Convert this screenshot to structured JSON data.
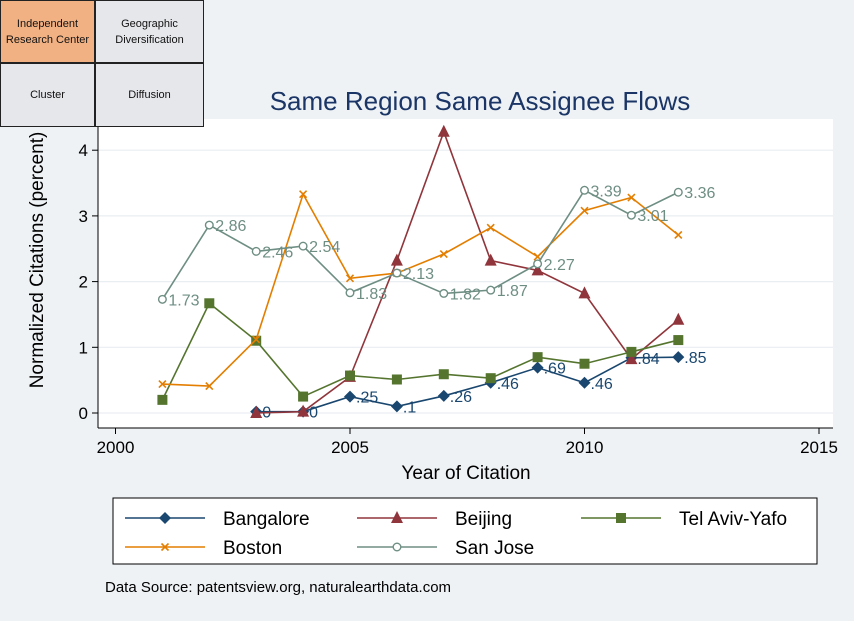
{
  "nav": {
    "items": [
      {
        "label": "Independent\nResearch Center",
        "active": true
      },
      {
        "label": "Geographic\nDiversification",
        "active": false
      },
      {
        "label": "Cluster",
        "active": false
      },
      {
        "label": "Diffusion",
        "active": false
      }
    ]
  },
  "source_note": "Data Source: patentsview.org, naturalearthdata.com",
  "chart_data": {
    "type": "line",
    "title": "Same Region Same Assignee Flows",
    "xlabel": "Year of Citation",
    "ylabel": "Normalized Citations (percent)",
    "xlim": [
      2000,
      2015
    ],
    "ylim": [
      0,
      4.2
    ],
    "xticks": [
      2000,
      2005,
      2010,
      2015
    ],
    "yticks": [
      0,
      1,
      2,
      3,
      4
    ],
    "grid": true,
    "legend_position": "bottom",
    "series": [
      {
        "name": "Bangalore",
        "color": "#1a476f",
        "marker": "diamond",
        "x": [
          2003,
          2004,
          2005,
          2006,
          2007,
          2008,
          2009,
          2010,
          2011,
          2012
        ],
        "y": [
          0.02,
          0.02,
          0.25,
          0.1,
          0.26,
          0.46,
          0.69,
          0.46,
          0.84,
          0.85
        ],
        "labels": [
          "0",
          "0",
          ".25",
          ".1",
          ".26",
          ".46",
          ".69",
          ".46",
          ".84",
          ".85"
        ]
      },
      {
        "name": "Beijing",
        "color": "#90353b",
        "marker": "triangle",
        "x": [
          2003,
          2004,
          2005,
          2006,
          2007,
          2008,
          2009,
          2010,
          2011,
          2012
        ],
        "y": [
          0.0,
          0.02,
          0.55,
          2.32,
          4.28,
          2.32,
          2.17,
          1.82,
          0.82,
          1.42
        ],
        "labels": []
      },
      {
        "name": "Tel Aviv-Yafo",
        "color": "#55752f",
        "marker": "square",
        "x": [
          2001,
          2002,
          2003,
          2004,
          2005,
          2006,
          2007,
          2008,
          2009,
          2010,
          2011,
          2012
        ],
        "y": [
          0.2,
          1.67,
          1.1,
          0.25,
          0.57,
          0.51,
          0.59,
          0.53,
          0.85,
          0.75,
          0.93,
          1.11
        ],
        "labels": []
      },
      {
        "name": "Boston",
        "color": "#e37e00",
        "marker": "x",
        "x": [
          2001,
          2002,
          2003,
          2004,
          2005,
          2006,
          2007,
          2008,
          2009,
          2010,
          2011,
          2012
        ],
        "y": [
          0.44,
          0.41,
          1.12,
          3.33,
          2.05,
          2.13,
          2.42,
          2.82,
          2.38,
          3.08,
          3.28,
          2.71
        ],
        "labels": []
      },
      {
        "name": "San Jose",
        "color": "#6e8e84",
        "marker": "circle",
        "x": [
          2001,
          2002,
          2003,
          2004,
          2005,
          2006,
          2007,
          2008,
          2009,
          2010,
          2011,
          2012
        ],
        "y": [
          1.73,
          2.86,
          2.46,
          2.54,
          1.83,
          2.13,
          1.82,
          1.87,
          2.27,
          3.39,
          3.01,
          3.36
        ],
        "labels": [
          "1.73",
          "2.86",
          "2.46",
          "2.54",
          "1.83",
          "2.13",
          "1.82",
          "1.87",
          "2.27",
          "3.39",
          "3.01",
          "3.36"
        ]
      }
    ]
  }
}
